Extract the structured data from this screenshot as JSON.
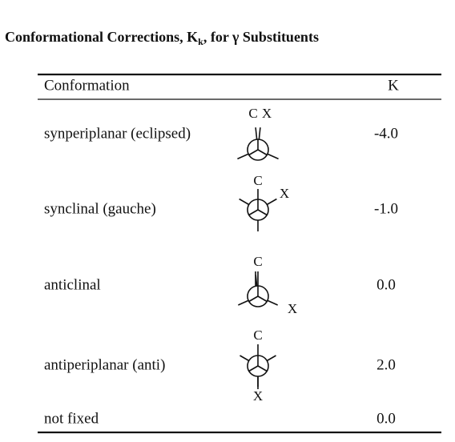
{
  "header": {
    "title": {
      "before": "Conformational Corrections, K",
      "subscript": "k",
      "after": ", for γ Substituents"
    }
  },
  "table": {
    "columns": [
      "Conformation",
      "K"
    ],
    "rows": [
      {
        "conformation": "synperiplanar (eclipsed)",
        "projection_labels": [
          "C",
          "X"
        ],
        "k": "-4.0"
      },
      {
        "conformation": "synclinal (gauche)",
        "projection_labels": [
          "C",
          "X"
        ],
        "k": "-1.0"
      },
      {
        "conformation": "anticlinal",
        "projection_labels": [
          "C",
          "X"
        ],
        "k": "0.0"
      },
      {
        "conformation": "antiperiplanar (anti)",
        "projection_labels": [
          "C",
          "X"
        ],
        "k": "2.0"
      },
      {
        "conformation": "not fixed",
        "k": "0.0"
      }
    ]
  }
}
